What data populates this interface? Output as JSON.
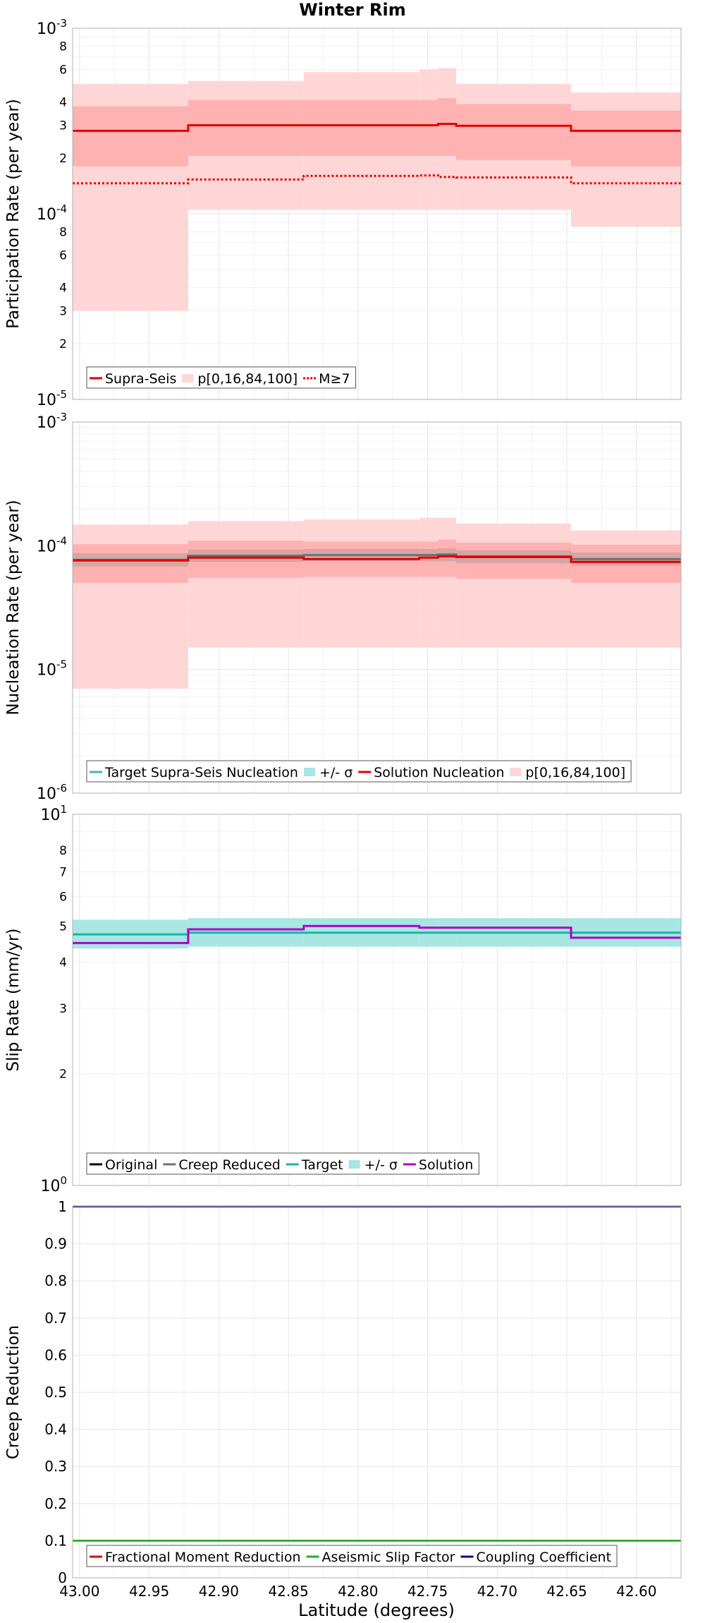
{
  "title": "Winter Rim",
  "xlabel": "Latitude (degrees)",
  "x_ticks": [
    43.0,
    42.95,
    42.9,
    42.85,
    42.8,
    42.75,
    42.7,
    42.65,
    42.6
  ],
  "x_tick_labels": [
    "43.00",
    "42.95",
    "42.90",
    "42.85",
    "42.80",
    "42.75",
    "42.70",
    "42.65",
    "42.60"
  ],
  "xlim": [
    43.005,
    42.568
  ],
  "segment_edges": [
    43.005,
    42.922,
    42.839,
    42.756,
    42.7425,
    42.7295,
    42.647,
    42.568
  ],
  "colors": {
    "red": "#e00000",
    "red_band_outer": "#ffd6d6",
    "red_band_inner": "#ffb2b2",
    "gray": "#707070",
    "gray_band": "#c8a0a0",
    "teal": "#1bb3a6",
    "teal_band": "#a8e6e2",
    "purple": "#b000c8",
    "green": "#20b020",
    "navy": "#0a0a90",
    "grid": "#e6e6e6"
  },
  "chart_data": [
    {
      "type": "line",
      "panel": "participation",
      "ylabel": "Participation Rate (per year)",
      "yscale": "log",
      "ylim": [
        1e-05,
        0.001
      ],
      "y_major_ticks": [
        1e-05,
        0.0001,
        0.001
      ],
      "y_minor_ticks": [
        2,
        3,
        4,
        6,
        8
      ],
      "legend": [
        "Supra-Seis",
        "p[0,16,84,100]",
        "M≥7"
      ],
      "series": [
        {
          "name": "Supra-Seis",
          "style": "solid",
          "color": "#e00000",
          "values": [
            0.00028,
            0.0003,
            0.0003,
            0.0003,
            0.000305,
            0.000298,
            0.00028
          ]
        },
        {
          "name": "M≥7",
          "style": "dotted",
          "color": "#e00000",
          "values": [
            0.000146,
            0.000153,
            0.00016,
            0.000161,
            0.000158,
            0.000157,
            0.000146
          ]
        }
      ],
      "bands": [
        {
          "name": "p[0,16,84,100]",
          "tier": "outer",
          "low": [
            3e-05,
            0.000105,
            0.000105,
            0.000105,
            0.000105,
            0.000105,
            8.5e-05
          ],
          "high": [
            0.0005,
            0.00052,
            0.00058,
            0.0006,
            0.00061,
            0.0005,
            0.00045
          ]
        },
        {
          "name": "p[0,16,84,100]",
          "tier": "inner",
          "low": [
            0.00018,
            0.000205,
            0.000205,
            0.000205,
            0.000205,
            0.000195,
            0.00018
          ],
          "high": [
            0.00038,
            0.00041,
            0.00041,
            0.00041,
            0.00042,
            0.00039,
            0.00036
          ]
        }
      ]
    },
    {
      "type": "line",
      "panel": "nucleation",
      "ylabel": "Nucleation Rate (per year)",
      "yscale": "log",
      "ylim": [
        1e-06,
        0.001
      ],
      "y_major_ticks": [
        1e-06,
        1e-05,
        0.0001,
        0.001
      ],
      "y_minor_ticks": [],
      "legend": [
        "Target Supra-Seis Nucleation",
        "+/- σ",
        "Solution Nucleation",
        "p[0,16,84,100]"
      ],
      "series": [
        {
          "name": "Target Supra-Seis Nucleation",
          "style": "solid",
          "color": "#707070",
          "values": [
            7.7e-05,
            8.3e-05,
            8.4e-05,
            8.4e-05,
            8.5e-05,
            8.2e-05,
            7.8e-05
          ]
        },
        {
          "name": "Solution Nucleation",
          "style": "solid",
          "color": "#e00000",
          "values": [
            7.6e-05,
            8e-05,
            7.8e-05,
            8e-05,
            8.2e-05,
            8.1e-05,
            7.4e-05
          ]
        }
      ],
      "bands": [
        {
          "name": "p[0,16,84,100]",
          "tier": "outer",
          "low": [
            7e-06,
            1.5e-05,
            1.5e-05,
            1.5e-05,
            1.5e-05,
            1.5e-05,
            1.5e-05
          ],
          "high": [
            0.000148,
            0.000158,
            0.000163,
            0.000168,
            0.000168,
            0.000151,
            0.000133
          ]
        },
        {
          "name": "p[0,16,84,100]",
          "tier": "inner",
          "low": [
            5e-05,
            5.5e-05,
            5.6e-05,
            5.6e-05,
            5.6e-05,
            5.4e-05,
            5e-05
          ],
          "high": [
            0.000103,
            0.00011,
            0.000108,
            0.000108,
            0.000112,
            0.000106,
            0.000102
          ]
        },
        {
          "name": "+/- σ",
          "tier": "sigma",
          "low": [
            6.8e-05,
            7.4e-05,
            7.5e-05,
            7.5e-05,
            7.5e-05,
            7.2e-05,
            6.9e-05
          ],
          "high": [
            8.7e-05,
            9.3e-05,
            9.4e-05,
            9.4e-05,
            9.5e-05,
            9.2e-05,
            8.8e-05
          ]
        }
      ]
    },
    {
      "type": "line",
      "panel": "slip",
      "ylabel": "Slip Rate (mm/yr)",
      "yscale": "log",
      "ylim": [
        1,
        10
      ],
      "y_major_ticks": [
        1,
        10
      ],
      "y_minor_ticks": [
        2,
        3,
        4,
        5,
        6,
        7,
        8
      ],
      "legend": [
        "Original",
        "Creep Reduced",
        "Target",
        "+/- σ",
        "Solution"
      ],
      "series": [
        {
          "name": "Target",
          "style": "solid",
          "color": "#1bb3a6",
          "values": [
            4.75,
            4.8,
            4.8,
            4.8,
            4.8,
            4.8,
            4.8
          ]
        },
        {
          "name": "Solution",
          "style": "solid",
          "color": "#b000c8",
          "values": [
            4.5,
            4.9,
            5.0,
            4.95,
            4.95,
            4.95,
            4.65
          ]
        }
      ],
      "bands": [
        {
          "name": "+/- σ",
          "tier": "sigma",
          "low": [
            4.35,
            4.4,
            4.4,
            4.4,
            4.4,
            4.4,
            4.4
          ],
          "high": [
            5.2,
            5.25,
            5.25,
            5.25,
            5.25,
            5.25,
            5.25
          ]
        }
      ]
    },
    {
      "type": "line",
      "panel": "creep",
      "ylabel": "Creep Reduction",
      "yscale": "linear",
      "ylim": [
        0,
        1
      ],
      "y_major_ticks": [
        0,
        0.1,
        0.2,
        0.3,
        0.4,
        0.5,
        0.6,
        0.7,
        0.8,
        0.9,
        1
      ],
      "y_tick_labels": [
        "0",
        "0.1",
        "0.2",
        "0.3",
        "0.4",
        "0.5",
        "0.6",
        "0.7",
        "0.8",
        "0.9",
        "1"
      ],
      "legend": [
        "Fractional Moment Reduction",
        "Aseismic Slip Factor",
        "Coupling Coefficient"
      ],
      "series": [
        {
          "name": "Fractional Moment Reduction",
          "style": "solid",
          "color": "#e00000",
          "values": [
            0.1,
            0.1,
            0.1,
            0.1,
            0.1,
            0.1,
            0.1
          ]
        },
        {
          "name": "Aseismic Slip Factor",
          "style": "solid",
          "color": "#20b020",
          "values": [
            0.1,
            0.1,
            0.1,
            0.1,
            0.1,
            0.1,
            0.1
          ]
        },
        {
          "name": "Coupling Coefficient",
          "style": "solid",
          "color": "#0a0a90",
          "values": [
            1,
            1,
            1,
            1,
            1,
            1,
            1
          ]
        }
      ],
      "bands": []
    }
  ]
}
